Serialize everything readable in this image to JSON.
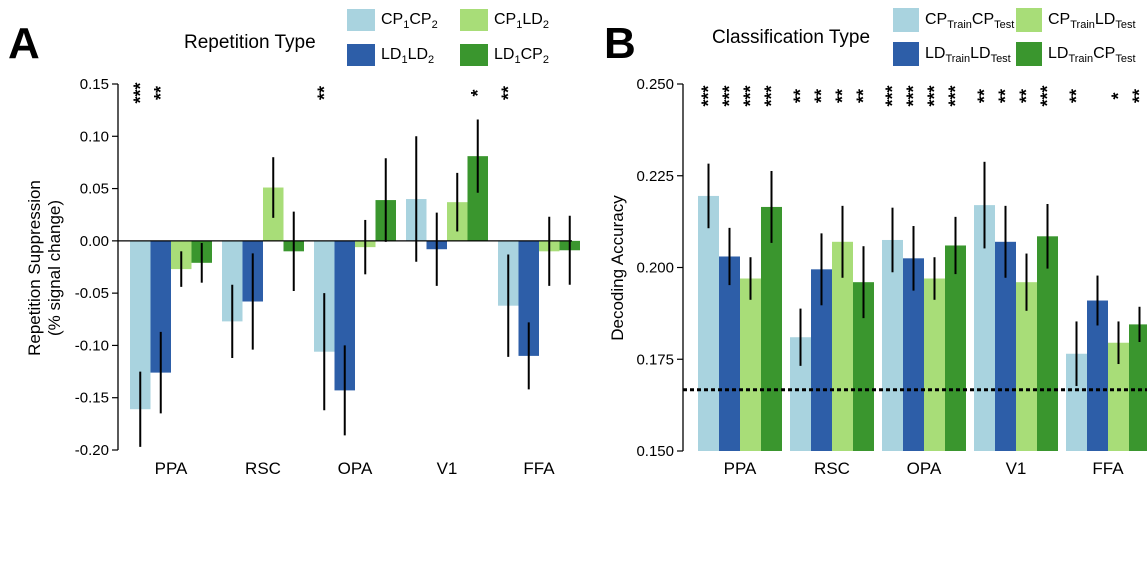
{
  "colors": {
    "light_blue": "#a9d3df",
    "dark_blue": "#2d5ea8",
    "light_green": "#a8dd78",
    "dark_green": "#3a962e"
  },
  "chart_data": [
    {
      "panel": "A",
      "type": "bar",
      "legend_title": "Repetition Type",
      "legend_position": "top",
      "categories": [
        "PPA",
        "RSC",
        "OPA",
        "V1",
        "FFA"
      ],
      "ylabel": "Repetition Suppression",
      "ylabel2": "(% signal change)",
      "ylim": [
        -0.2,
        0.15
      ],
      "yticks": [
        "0.15",
        "0.10",
        "0.05",
        "0.00",
        "-0.05",
        "-0.10",
        "-0.15",
        "-0.20"
      ],
      "ytick_values": [
        0.15,
        0.1,
        0.05,
        0.0,
        -0.05,
        -0.1,
        -0.15,
        -0.2
      ],
      "series": [
        {
          "name": "CP1CP2",
          "label_parts": [
            [
              "CP",
              ""
            ],
            [
              "1",
              "sub"
            ],
            [
              "CP",
              ""
            ],
            [
              "2",
              "sub"
            ]
          ],
          "color": "#a9d3df",
          "values": [
            -0.161,
            -0.077,
            -0.106,
            0.04,
            -0.062
          ],
          "err": [
            0.036,
            0.035,
            0.056,
            0.06,
            0.049
          ]
        },
        {
          "name": "LD1LD2",
          "label_parts": [
            [
              "LD",
              ""
            ],
            [
              "1",
              "sub"
            ],
            [
              "LD",
              ""
            ],
            [
              "2",
              "sub"
            ]
          ],
          "color": "#2d5ea8",
          "values": [
            -0.126,
            -0.058,
            -0.143,
            -0.008,
            -0.11
          ],
          "err": [
            0.039,
            0.046,
            0.043,
            0.035,
            0.032
          ]
        },
        {
          "name": "CP1LD2",
          "label_parts": [
            [
              "CP",
              ""
            ],
            [
              "1",
              "sub"
            ],
            [
              "LD",
              ""
            ],
            [
              "2",
              "sub"
            ]
          ],
          "color": "#a8dd78",
          "values": [
            -0.027,
            0.051,
            -0.006,
            0.037,
            -0.01
          ],
          "err": [
            0.017,
            0.029,
            0.026,
            0.028,
            0.033
          ]
        },
        {
          "name": "LD1CP2",
          "label_parts": [
            [
              "LD",
              ""
            ],
            [
              "1",
              "sub"
            ],
            [
              "CP",
              ""
            ],
            [
              "2",
              "sub"
            ]
          ],
          "color": "#3a962e",
          "values": [
            -0.021,
            -0.01,
            0.039,
            0.081,
            -0.009
          ],
          "err": [
            0.019,
            0.038,
            0.04,
            0.035,
            0.033
          ]
        }
      ],
      "significance": [
        [
          "***",
          "**",
          "",
          ""
        ],
        [
          "",
          "",
          "",
          ""
        ],
        [
          "**",
          "",
          "",
          ""
        ],
        [
          "",
          "",
          "",
          "*"
        ],
        [
          "**",
          "",
          "",
          ""
        ]
      ]
    },
    {
      "panel": "B",
      "type": "bar",
      "legend_title": "Classification Type",
      "legend_position": "top",
      "categories": [
        "PPA",
        "RSC",
        "OPA",
        "V1",
        "FFA"
      ],
      "ylabel": "Decoding Accuracy",
      "ylim": [
        0.15,
        0.25
      ],
      "yticks": [
        "0.250",
        "0.225",
        "0.200",
        "0.175",
        "0.150"
      ],
      "ytick_values": [
        0.25,
        0.225,
        0.2,
        0.175,
        0.15
      ],
      "chance_level": 0.1667,
      "series": [
        {
          "name": "CPTrainCPTest",
          "label_parts": [
            [
              "CP",
              ""
            ],
            [
              "Train",
              "sub"
            ],
            [
              "CP",
              ""
            ],
            [
              "Test",
              "sub"
            ]
          ],
          "color": "#a9d3df",
          "values": [
            0.2195,
            0.181,
            0.2075,
            0.217,
            0.1765
          ],
          "err": [
            0.0088,
            0.0078,
            0.0088,
            0.0118,
            0.0088
          ]
        },
        {
          "name": "LDTrainLDTest",
          "label_parts": [
            [
              "LD",
              ""
            ],
            [
              "Train",
              "sub"
            ],
            [
              "LD",
              ""
            ],
            [
              "Test",
              "sub"
            ]
          ],
          "color": "#2d5ea8",
          "values": [
            0.203,
            0.1995,
            0.2025,
            0.207,
            0.191
          ],
          "err": [
            0.0078,
            0.0098,
            0.0088,
            0.0098,
            0.0068
          ]
        },
        {
          "name": "CPTrainLDTest",
          "label_parts": [
            [
              "CP",
              ""
            ],
            [
              "Train",
              "sub"
            ],
            [
              "LD",
              ""
            ],
            [
              "Test",
              "sub"
            ]
          ],
          "color": "#a8dd78",
          "values": [
            0.197,
            0.207,
            0.197,
            0.196,
            0.1795
          ],
          "err": [
            0.0058,
            0.0098,
            0.0058,
            0.0078,
            0.0058
          ]
        },
        {
          "name": "LDTrainCPTest",
          "label_parts": [
            [
              "LD",
              ""
            ],
            [
              "Train",
              "sub"
            ],
            [
              "CP",
              ""
            ],
            [
              "Test",
              "sub"
            ]
          ],
          "color": "#3a962e",
          "values": [
            0.2165,
            0.196,
            0.206,
            0.2085,
            0.1845
          ],
          "err": [
            0.0098,
            0.0098,
            0.0078,
            0.0088,
            0.0048
          ]
        }
      ],
      "significance": [
        [
          "***",
          "***",
          "***",
          "***"
        ],
        [
          "**",
          "**",
          "**",
          "**"
        ],
        [
          "***",
          "***",
          "***",
          "***"
        ],
        [
          "**",
          "**",
          "**",
          "***"
        ],
        [
          "**",
          "",
          "*",
          "**"
        ]
      ]
    }
  ]
}
